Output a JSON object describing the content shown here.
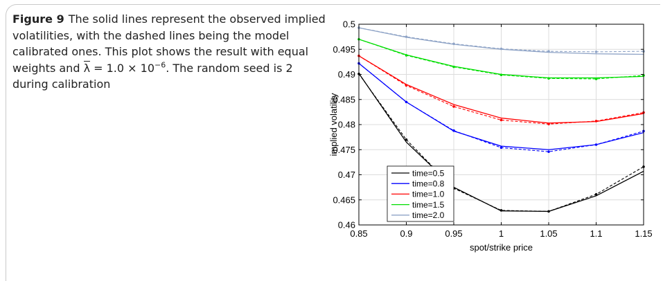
{
  "caption": {
    "label": "Figure 9",
    "text_before": "The solid lines represent the observed implied volatilities, with the dashed lines being the model calibrated ones. This plot shows the result with equal weights and ",
    "lambda_symbol": "λ",
    "text_mid": " = 1.0 × 10",
    "exponent": "−6",
    "text_after": ". The random seed is 2 during calibration"
  },
  "chart_data": {
    "type": "line",
    "xlabel": "spot/strike price",
    "ylabel": "implied volatility",
    "xlim": [
      0.85,
      1.15
    ],
    "ylim": [
      0.46,
      0.5
    ],
    "x": [
      0.85,
      0.9,
      0.95,
      1.0,
      1.05,
      1.1,
      1.15
    ],
    "xticks": [
      "0.85",
      "0.9",
      "0.95",
      "1",
      "1.05",
      "1.1",
      "1.15"
    ],
    "yticks": [
      "0.46",
      "0.465",
      "0.47",
      "0.475",
      "0.48",
      "0.485",
      "0.49",
      "0.495",
      "0.5"
    ],
    "grid": true,
    "legend_position": "bottom-left",
    "series": [
      {
        "name": "time=0.5",
        "color": "#000000",
        "observed": [
          0.4902,
          0.4765,
          0.4675,
          0.4628,
          0.4627,
          0.4658,
          0.4707
        ],
        "model": [
          0.4901,
          0.477,
          0.4673,
          0.4629,
          0.4627,
          0.4661,
          0.4716
        ]
      },
      {
        "name": "time=0.8",
        "color": "#0000ff",
        "observed": [
          0.4922,
          0.4845,
          0.4787,
          0.4757,
          0.475,
          0.476,
          0.4784
        ],
        "model": [
          0.4922,
          0.4845,
          0.4788,
          0.4754,
          0.4746,
          0.476,
          0.4787
        ]
      },
      {
        "name": "time=1.0",
        "color": "#ff0000",
        "observed": [
          0.4937,
          0.488,
          0.484,
          0.4813,
          0.4803,
          0.4806,
          0.4822
        ],
        "model": [
          0.4937,
          0.4878,
          0.4836,
          0.4809,
          0.4801,
          0.4807,
          0.4824
        ]
      },
      {
        "name": "time=1.5",
        "color": "#00dd00",
        "observed": [
          0.497,
          0.4939,
          0.4916,
          0.49,
          0.4893,
          0.4893,
          0.4896
        ],
        "model": [
          0.497,
          0.4938,
          0.4915,
          0.4899,
          0.4892,
          0.4891,
          0.4898
        ]
      },
      {
        "name": "time=2.0",
        "color": "#8ea3c6",
        "observed": [
          0.4993,
          0.4974,
          0.496,
          0.495,
          0.4944,
          0.4941,
          0.494
        ],
        "model": [
          0.4993,
          0.4975,
          0.4961,
          0.4951,
          0.4946,
          0.4945,
          0.4946
        ]
      }
    ]
  }
}
